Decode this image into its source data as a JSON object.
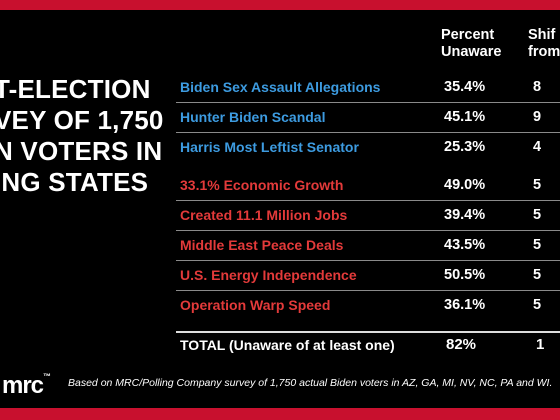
{
  "headline": {
    "lines": [
      "T-ELECTION",
      "VEY OF 1,750",
      "N VOTERS IN",
      "ING STATES"
    ]
  },
  "headers": {
    "percent": [
      "Percent",
      "Unaware"
    ],
    "shift": [
      "Shif",
      "from"
    ]
  },
  "rows": [
    {
      "label": "Biden Sex Assault Allegations",
      "percent": "35.4%",
      "shift": "8",
      "color": "#3d9be0"
    },
    {
      "label": "Hunter Biden Scandal",
      "percent": "45.1%",
      "shift": "9",
      "color": "#3d9be0"
    },
    {
      "label": "Harris Most Leftist Senator",
      "percent": "25.3%",
      "shift": "4",
      "color": "#3d9be0"
    },
    {
      "label": "33.1% Economic Growth",
      "percent": "49.0%",
      "shift": "5",
      "color": "#e33a3a"
    },
    {
      "label": "Created 11.1 Million Jobs",
      "percent": "39.4%",
      "shift": "5",
      "color": "#e33a3a"
    },
    {
      "label": "Middle East Peace Deals",
      "percent": "43.5%",
      "shift": "5",
      "color": "#e33a3a"
    },
    {
      "label": "U.S. Energy Independence",
      "percent": "50.5%",
      "shift": "5",
      "color": "#e33a3a"
    },
    {
      "label": "Operation Warp Speed",
      "percent": "36.1%",
      "shift": "5",
      "color": "#e33a3a"
    }
  ],
  "total": {
    "label": "TOTAL (Unaware of at least one)",
    "percent": "82%",
    "shift": "1"
  },
  "logo": {
    "text": "mrc",
    "mark": "™"
  },
  "footnote": "Based on MRC/Polling Company survey of 1,750 actual Biden voters in AZ, GA, MI, NV, NC, PA and WI.",
  "colors": {
    "accent_red": "#c8102e",
    "blue_labels": "#3d9be0",
    "red_labels": "#e33a3a"
  }
}
